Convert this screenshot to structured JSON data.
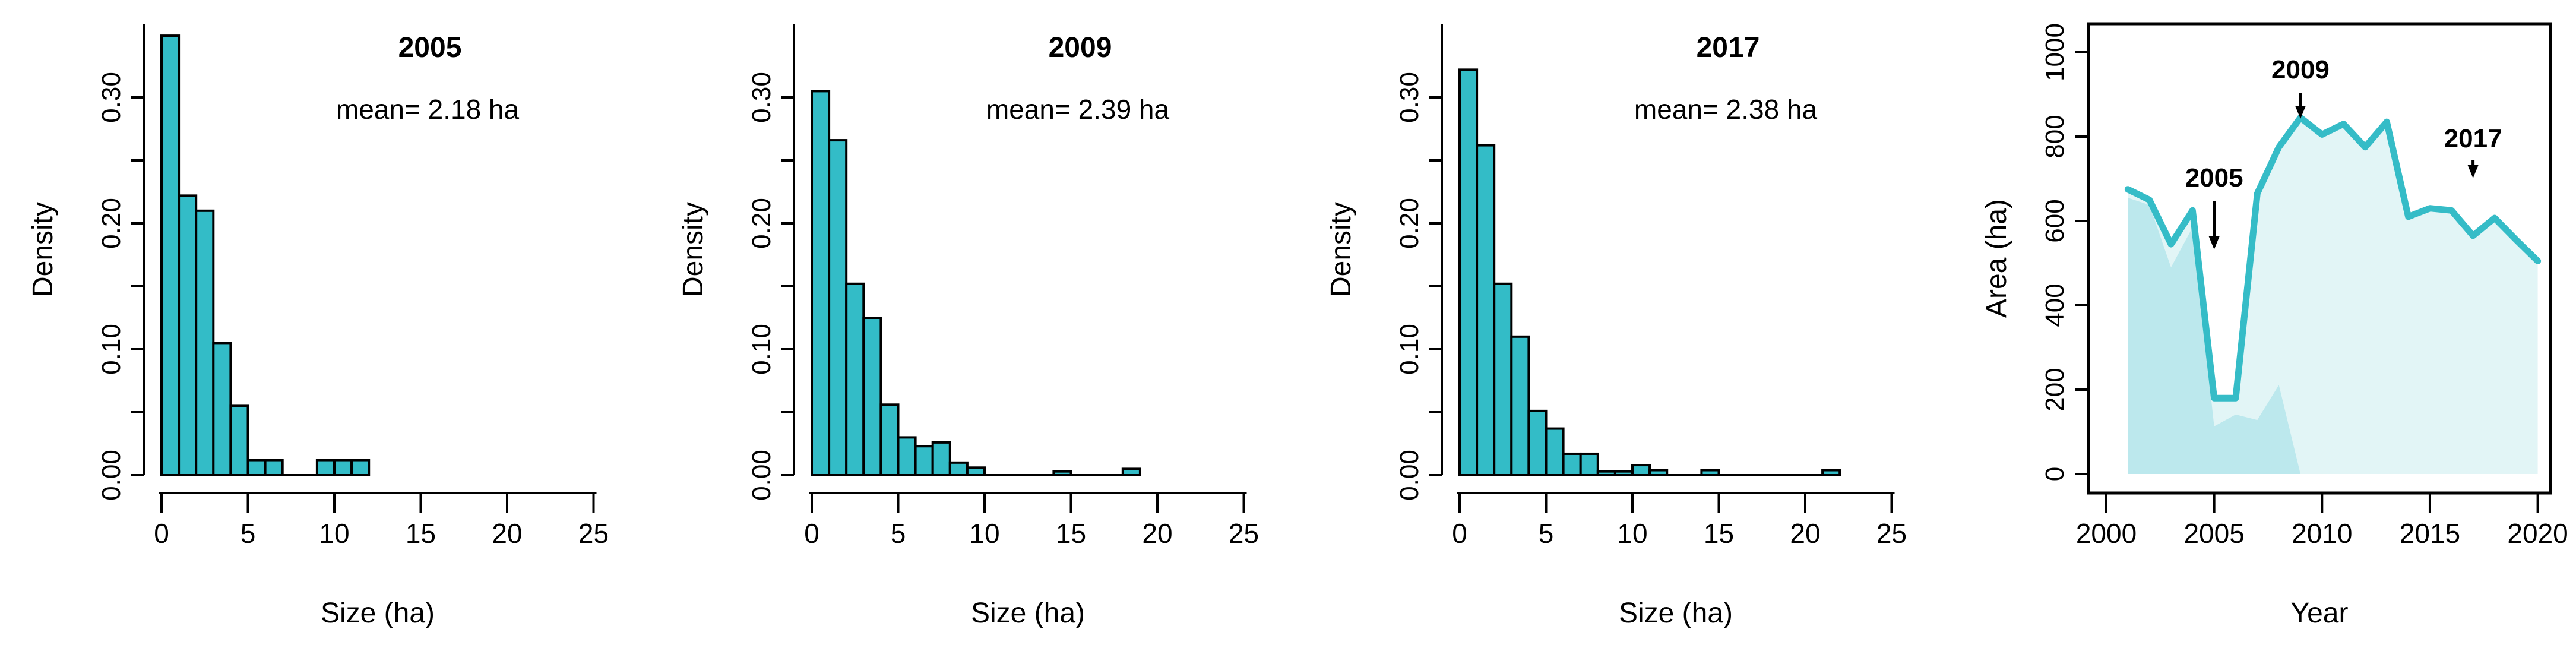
{
  "figure": {
    "background": "#ffffff",
    "description_texts": {
      "density_axis": "Density",
      "size_axis": "Size (ha)",
      "area_axis": "Area (ha)",
      "year_axis": "Year"
    }
  },
  "colors": {
    "bar_fill": "#33bcc7",
    "bar_border": "#000000",
    "line_teal": "#35bcc7",
    "area_fill_light": "#e2f5f6",
    "area_fill_medium": "#bce8ed",
    "axis_black": "#000000",
    "text_black": "#000000"
  },
  "chart_data": [
    {
      "type": "bar",
      "panel": "histogram-2005",
      "title": "2005",
      "annotation": "mean= 2.18 ha",
      "xlabel": "Size (ha)",
      "ylabel": "Density",
      "bin_start": 0,
      "bin_width": 1,
      "values": [
        0.349,
        0.222,
        0.21,
        0.105,
        0.055,
        0.012,
        0.012,
        0,
        0,
        0.012,
        0.012,
        0.012
      ],
      "x_ticks": [
        0,
        5,
        10,
        15,
        20,
        25
      ],
      "y_tick_step_minor": 0.05,
      "y_ticks_labeled": [
        "0.00",
        "0.10",
        "0.20",
        "0.30"
      ],
      "xlim": [
        0,
        25
      ],
      "ylim": [
        0,
        0.355
      ],
      "grid": false
    },
    {
      "type": "bar",
      "panel": "histogram-2009",
      "title": "2009",
      "annotation": "mean= 2.39 ha",
      "xlabel": "Size (ha)",
      "ylabel": "Density",
      "bin_start": 0,
      "bin_width": 1,
      "values": [
        0.305,
        0.266,
        0.152,
        0.125,
        0.056,
        0.03,
        0.023,
        0.026,
        0.01,
        0.006,
        0,
        0,
        0,
        0,
        0.003,
        0,
        0,
        0,
        0.005
      ],
      "x_ticks": [
        0,
        5,
        10,
        15,
        20,
        25
      ],
      "y_tick_step_minor": 0.05,
      "y_ticks_labeled": [
        "0.00",
        "0.10",
        "0.20",
        "0.30"
      ],
      "xlim": [
        0,
        25
      ],
      "ylim": [
        0,
        0.32
      ],
      "grid": false
    },
    {
      "type": "bar",
      "panel": "histogram-2017",
      "title": "2017",
      "annotation": "mean= 2.38 ha",
      "xlabel": "Size (ha)",
      "ylabel": "Density",
      "bin_start": 0,
      "bin_width": 1,
      "values": [
        0.322,
        0.262,
        0.152,
        0.11,
        0.051,
        0.037,
        0.017,
        0.017,
        0.003,
        0.003,
        0.008,
        0.004,
        0,
        0,
        0.004,
        0,
        0,
        0,
        0,
        0,
        0,
        0.004
      ],
      "x_ticks": [
        0,
        5,
        10,
        15,
        20,
        25
      ],
      "y_tick_step_minor": 0.05,
      "y_ticks_labeled": [
        "0.00",
        "0.10",
        "0.20",
        "0.30"
      ],
      "xlim": [
        0,
        25
      ],
      "ylim": [
        0,
        0.33
      ],
      "grid": false
    },
    {
      "type": "area",
      "panel": "timeseries-area",
      "title": "",
      "xlabel": "Year",
      "ylabel": "Area (ha)",
      "x": [
        2001,
        2002,
        2003,
        2004,
        2005,
        2006,
        2007,
        2008,
        2009,
        2010,
        2011,
        2012,
        2013,
        2014,
        2015,
        2016,
        2017,
        2018,
        2019,
        2020
      ],
      "series": [
        {
          "name": "total-area-line",
          "style": "thick-line-with-light-fill",
          "values": [
            675,
            650,
            545,
            625,
            180,
            180,
            665,
            775,
            845,
            805,
            830,
            775,
            835,
            610,
            630,
            625,
            565,
            607,
            555,
            505
          ]
        },
        {
          "name": "secondary-area-fill",
          "style": "medium-fill-no-line",
          "x": [
            2001,
            2002,
            2003,
            2004,
            2005,
            2006,
            2007,
            2008,
            2009
          ],
          "values": [
            655,
            638,
            490,
            585,
            113,
            141,
            128,
            211,
            0
          ]
        }
      ],
      "annotations": [
        {
          "label": "2005",
          "x": 2005
        },
        {
          "label": "2009",
          "x": 2009
        },
        {
          "label": "2017",
          "x": 2017
        }
      ],
      "x_ticks": [
        2000,
        2005,
        2010,
        2015,
        2020
      ],
      "y_ticks": [
        0,
        200,
        400,
        600,
        800,
        1000
      ],
      "xlim": [
        2000,
        2020
      ],
      "ylim": [
        0,
        1000
      ],
      "legend": "none",
      "grid": false
    }
  ]
}
